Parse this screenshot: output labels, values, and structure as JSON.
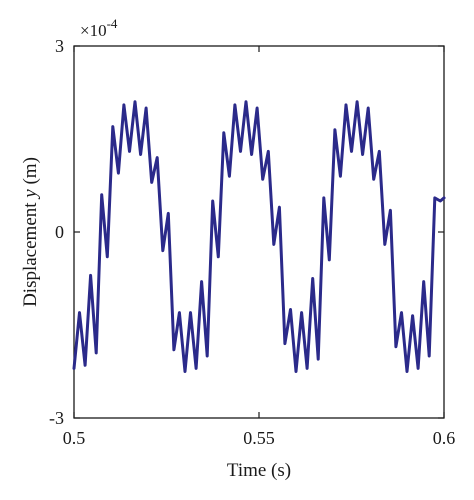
{
  "chart_data": {
    "type": "line",
    "title": "",
    "xlabel": "Time (s)",
    "ylabel_prefix": "Displacement ",
    "ylabel_var": "y",
    "ylabel_suffix": " (m)",
    "y_multiplier": "×10",
    "y_exponent": "-4",
    "xlim": [
      0.5,
      0.6
    ],
    "ylim": [
      -3,
      3
    ],
    "x_ticks": [
      0.5,
      0.55,
      0.6
    ],
    "x_tick_labels": [
      "0.5",
      "0.55",
      "0.6"
    ],
    "y_ticks": [
      -3,
      0,
      3
    ],
    "y_tick_labels": [
      "-3",
      "0",
      "3"
    ],
    "grid": false,
    "legend": "none",
    "series": [
      {
        "color": "#2b2a8a",
        "x": [
          0.5,
          0.5015,
          0.503,
          0.5045,
          0.506,
          0.5075,
          0.509,
          0.5105,
          0.512,
          0.5135,
          0.515,
          0.5165,
          0.518,
          0.5195,
          0.521,
          0.5225,
          0.524,
          0.5255,
          0.527,
          0.5285,
          0.53,
          0.5315,
          0.533,
          0.5345,
          0.536,
          0.5375,
          0.539,
          0.5405,
          0.542,
          0.5435,
          0.545,
          0.5465,
          0.548,
          0.5495,
          0.551,
          0.5525,
          0.554,
          0.5555,
          0.557,
          0.5585,
          0.56,
          0.5615,
          0.563,
          0.5645,
          0.566,
          0.5675,
          0.569,
          0.5705,
          0.572,
          0.5735,
          0.575,
          0.5765,
          0.578,
          0.5795,
          0.581,
          0.5825,
          0.584,
          0.5855,
          0.587,
          0.5885,
          0.59,
          0.5915,
          0.593,
          0.5945,
          0.596,
          0.5975,
          0.599,
          0.6
        ],
        "y": [
          -2.2,
          -1.3,
          -2.15,
          -0.7,
          -1.95,
          0.6,
          -0.4,
          1.7,
          0.95,
          2.05,
          1.3,
          2.1,
          1.25,
          2.0,
          0.8,
          1.2,
          -0.3,
          0.3,
          -1.9,
          -1.3,
          -2.25,
          -1.3,
          -2.2,
          -0.8,
          -2.0,
          0.5,
          -0.4,
          1.6,
          0.9,
          2.05,
          1.3,
          2.1,
          1.25,
          2.0,
          0.85,
          1.3,
          -0.2,
          0.4,
          -1.8,
          -1.25,
          -2.25,
          -1.3,
          -2.2,
          -0.75,
          -2.05,
          0.55,
          -0.45,
          1.65,
          0.9,
          2.05,
          1.3,
          2.1,
          1.25,
          2.0,
          0.85,
          1.3,
          -0.2,
          0.35,
          -1.85,
          -1.3,
          -2.25,
          -1.35,
          -2.2,
          -0.8,
          -2.0,
          0.55,
          0.5,
          0.55
        ]
      }
    ]
  }
}
